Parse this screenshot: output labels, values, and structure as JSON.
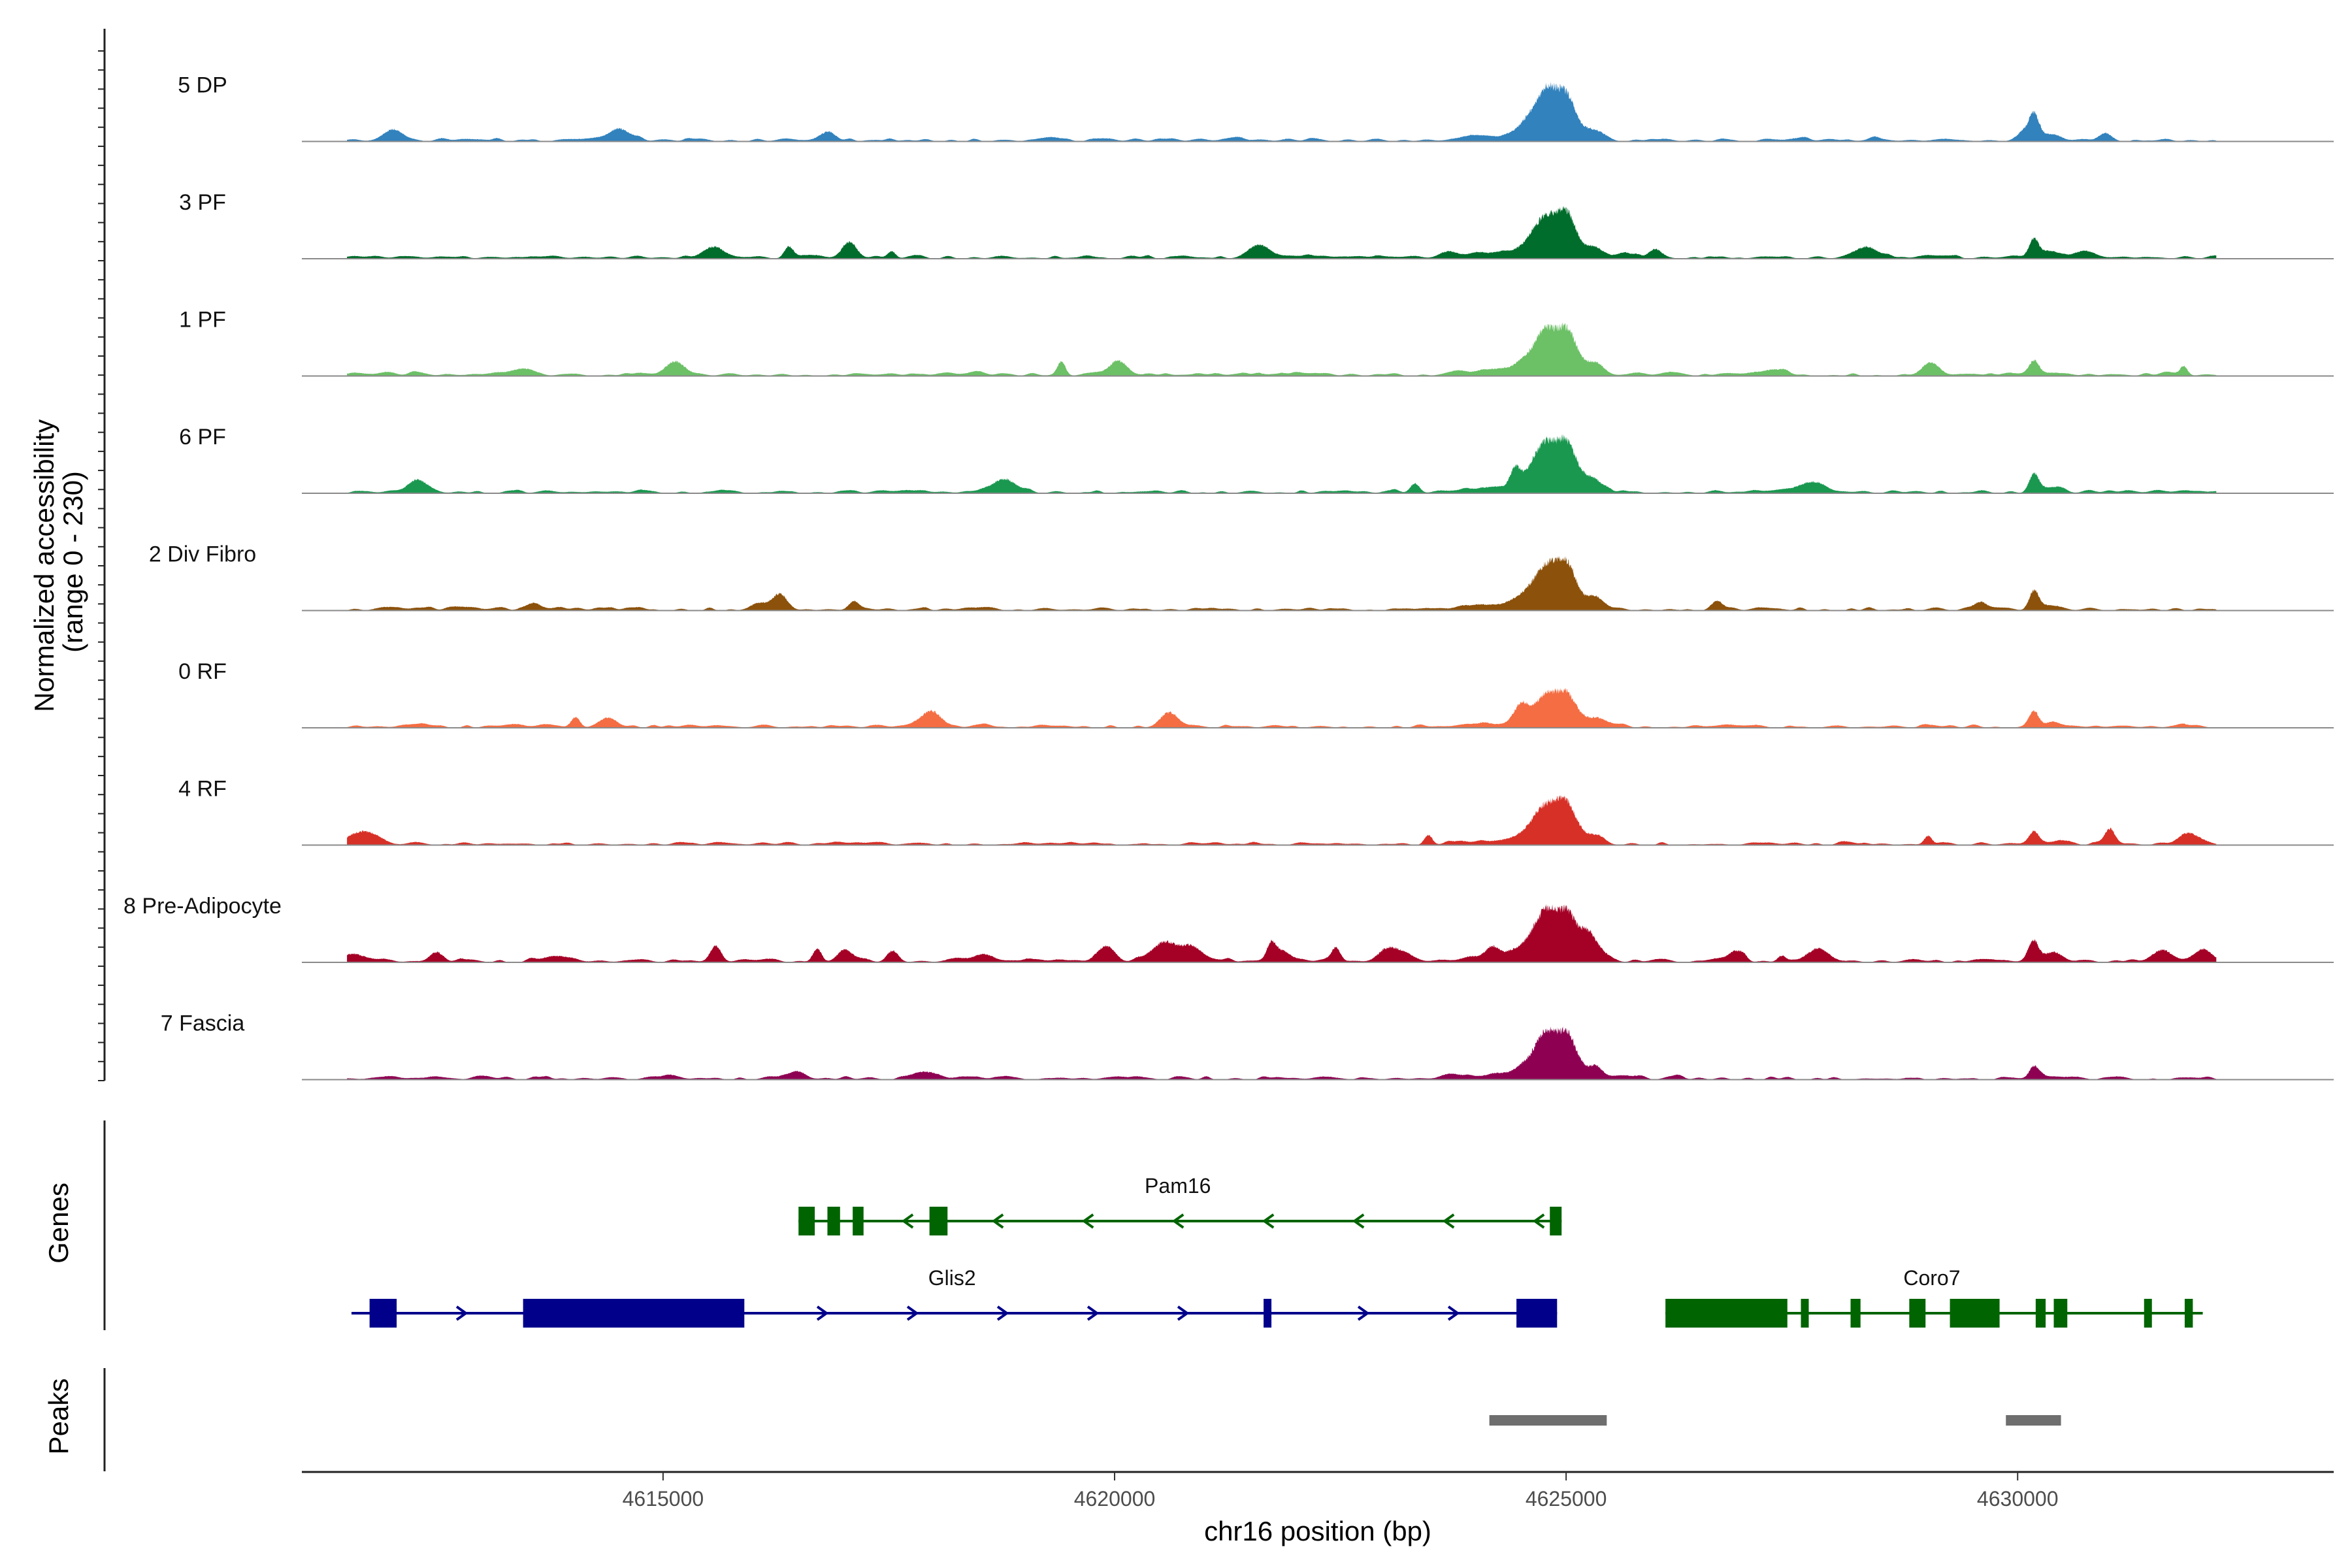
{
  "chart_data": {
    "type": "area",
    "title": "",
    "y_axis_title_line1": "Normalized accessibility",
    "y_axis_title_line2": "(range 0 - 230)",
    "ylim": [
      0,
      230
    ],
    "x_axis_title": "chr16 position (bp)",
    "xlim": [
      4611000,
      4633500
    ],
    "x_ticks": [
      4615000,
      4620000,
      4625000,
      4630000
    ],
    "x_tick_labels": [
      "4615000",
      "4620000",
      "4625000",
      "4630000"
    ],
    "panel_titles": {
      "genes": "Genes",
      "peaks": "Peaks"
    },
    "tracks": [
      {
        "name": "5 DP",
        "color": "#3182bd",
        "noise": 0.04,
        "peaks": [
          [
            4624780,
            170,
            0.45
          ],
          [
            4625000,
            230,
            0.6
          ],
          [
            4630180,
            70,
            0.3
          ]
        ]
      },
      {
        "name": "3 PF",
        "color": "#006d2c",
        "noise": 0.08,
        "peaks": [
          [
            4624780,
            135,
            0.75
          ],
          [
            4625000,
            210,
            0.65
          ],
          [
            4630180,
            72,
            0.45
          ]
        ]
      },
      {
        "name": "1 PF",
        "color": "#6cc066",
        "noise": 0.04,
        "peaks": [
          [
            4624780,
            150,
            0.7
          ],
          [
            4625000,
            220,
            0.75
          ],
          [
            4630180,
            48,
            0.2
          ]
        ]
      },
      {
        "name": "6 PF",
        "color": "#1a9850",
        "noise": 0.08,
        "peaks": [
          [
            4624780,
            170,
            0.85
          ],
          [
            4625000,
            225,
            0.8
          ],
          [
            4630180,
            70,
            0.4
          ]
        ]
      },
      {
        "name": "2 Div Fibro",
        "color": "#8c510a",
        "noise": 0.06,
        "peaks": [
          [
            4624780,
            140,
            0.65
          ],
          [
            4625000,
            230,
            0.7
          ],
          [
            4630180,
            68,
            0.3
          ]
        ]
      },
      {
        "name": "0 RF",
        "color": "#f46d43",
        "noise": 0.04,
        "peaks": [
          [
            4624780,
            95,
            0.5
          ],
          [
            4625000,
            165,
            0.55
          ],
          [
            4630180,
            60,
            0.3
          ]
        ]
      },
      {
        "name": "4 RF",
        "color": "#d73027",
        "noise": 0.07,
        "peaks": [
          [
            4624780,
            120,
            0.6
          ],
          [
            4625000,
            210,
            0.6
          ],
          [
            4630180,
            40,
            0.3
          ]
        ]
      },
      {
        "name": "8 Pre-Adipocyte",
        "color": "#a50026",
        "noise": 0.22,
        "peaks": [
          [
            4624780,
            170,
            0.9
          ],
          [
            4625000,
            225,
            0.9
          ],
          [
            4630180,
            55,
            0.4
          ]
        ]
      },
      {
        "name": "7 Fascia",
        "color": "#8e0152",
        "noise": 0.08,
        "peaks": [
          [
            4624780,
            150,
            0.75
          ],
          [
            4625000,
            210,
            0.7
          ],
          [
            4630180,
            48,
            0.35
          ]
        ]
      }
    ],
    "genes": [
      {
        "name": "Pam16",
        "strand": "-",
        "start": 4616500,
        "end": 4624950,
        "color": "#006400",
        "exons": [
          [
            4616500,
            4616680
          ],
          [
            4616820,
            4616960
          ],
          [
            4617100,
            4617220
          ],
          [
            4617950,
            4618150
          ],
          [
            4624820,
            4624950
          ]
        ]
      },
      {
        "name": "Glis2",
        "strand": "+",
        "start": 4611550,
        "end": 4624900,
        "color": "#00008b",
        "exons": [
          [
            4611750,
            4612050
          ],
          [
            4613450,
            4615900
          ],
          [
            4621650,
            4621720
          ],
          [
            4624450,
            4624900
          ]
        ]
      },
      {
        "name": "Coro7",
        "strand": "-",
        "start": 4626100,
        "end": 4632050,
        "color": "#006400",
        "exons": [
          [
            4626100,
            4627450
          ],
          [
            4627600,
            4627680
          ],
          [
            4628150,
            4628260
          ],
          [
            4628800,
            4628980
          ],
          [
            4629250,
            4629800
          ],
          [
            4630200,
            4630310
          ],
          [
            4630400,
            4630550
          ],
          [
            4631400,
            4631480
          ],
          [
            4631850,
            4631940
          ]
        ]
      }
    ],
    "peaks_regions": [
      [
        4624150,
        4625450
      ],
      [
        4629870,
        4630480
      ]
    ],
    "peaks_color": "#6e6e6e"
  }
}
